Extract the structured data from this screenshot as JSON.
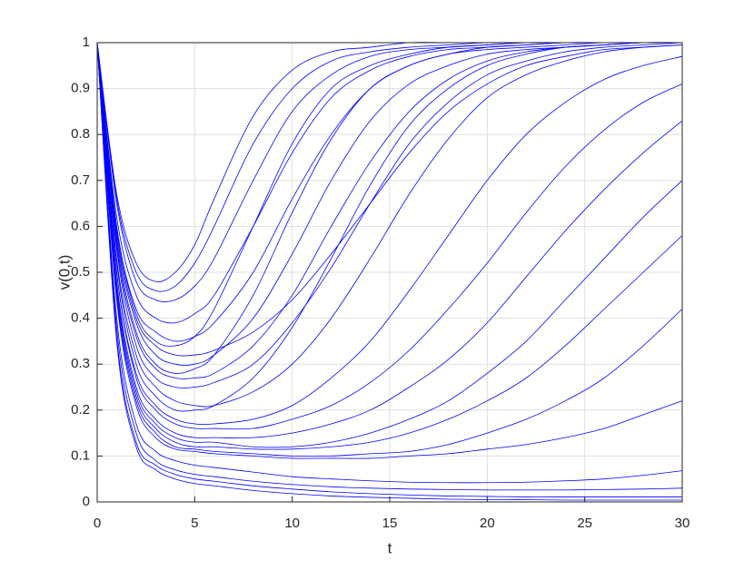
{
  "chart_data": {
    "type": "line",
    "xlabel": "t",
    "ylabel": "v(0,t)",
    "color": "#0000ff",
    "grid": true,
    "xlim": [
      0,
      30
    ],
    "ylim": [
      0,
      1
    ],
    "xticks": [
      0,
      5,
      10,
      15,
      20,
      25,
      30
    ],
    "yticks": [
      0,
      0.1,
      0.2,
      0.3,
      0.4,
      0.5,
      0.6,
      0.7,
      0.8,
      0.9,
      1
    ],
    "x": [
      0,
      1,
      2,
      3,
      4,
      5,
      6,
      8,
      10,
      12,
      14,
      16,
      18,
      20,
      22,
      24,
      26,
      28,
      30
    ],
    "series": [
      {
        "values": [
          1,
          0.66,
          0.5,
          0.46,
          0.47,
          0.52,
          0.6,
          0.78,
          0.9,
          0.96,
          0.98,
          0.99,
          0.995,
          1,
          1,
          1,
          1,
          1,
          1
        ]
      },
      {
        "values": [
          1,
          0.65,
          0.48,
          0.44,
          0.44,
          0.47,
          0.53,
          0.7,
          0.85,
          0.93,
          0.97,
          0.985,
          0.99,
          0.995,
          1,
          1,
          1,
          1,
          1
        ]
      },
      {
        "values": [
          1,
          0.62,
          0.45,
          0.4,
          0.39,
          0.41,
          0.45,
          0.6,
          0.76,
          0.88,
          0.94,
          0.97,
          0.985,
          0.99,
          0.995,
          1,
          1,
          1,
          1
        ]
      },
      {
        "values": [
          1,
          0.6,
          0.42,
          0.37,
          0.35,
          0.36,
          0.39,
          0.5,
          0.66,
          0.8,
          0.9,
          0.95,
          0.975,
          0.985,
          0.99,
          0.995,
          1,
          1,
          1
        ]
      },
      {
        "values": [
          1,
          0.6,
          0.41,
          0.35,
          0.34,
          0.36,
          0.42,
          0.6,
          0.78,
          0.9,
          0.95,
          0.975,
          0.99,
          0.995,
          1,
          1,
          1,
          1,
          1
        ]
      },
      {
        "values": [
          1,
          0.58,
          0.39,
          0.32,
          0.3,
          0.3,
          0.32,
          0.4,
          0.54,
          0.7,
          0.83,
          0.91,
          0.95,
          0.975,
          0.985,
          0.99,
          0.995,
          1,
          1
        ]
      },
      {
        "values": [
          1,
          0.57,
          0.37,
          0.3,
          0.28,
          0.29,
          0.32,
          0.45,
          0.63,
          0.79,
          0.9,
          0.95,
          0.975,
          0.99,
          0.995,
          1,
          1,
          1,
          1
        ]
      },
      {
        "values": [
          1,
          0.56,
          0.36,
          0.29,
          0.27,
          0.27,
          0.28,
          0.34,
          0.45,
          0.6,
          0.74,
          0.85,
          0.92,
          0.96,
          0.98,
          0.99,
          0.995,
          1,
          1
        ]
      },
      {
        "values": [
          1,
          0.55,
          0.34,
          0.27,
          0.25,
          0.25,
          0.26,
          0.3,
          0.39,
          0.51,
          0.65,
          0.78,
          0.87,
          0.93,
          0.96,
          0.98,
          0.99,
          0.995,
          1
        ]
      },
      {
        "values": [
          1,
          0.53,
          0.32,
          0.25,
          0.22,
          0.21,
          0.21,
          0.24,
          0.3,
          0.4,
          0.53,
          0.67,
          0.79,
          0.88,
          0.93,
          0.96,
          0.98,
          0.99,
          0.995
        ]
      },
      {
        "values": [
          1,
          0.52,
          0.3,
          0.23,
          0.2,
          0.2,
          0.21,
          0.27,
          0.38,
          0.53,
          0.69,
          0.82,
          0.9,
          0.95,
          0.975,
          0.99,
          0.995,
          1,
          1
        ]
      },
      {
        "values": [
          1,
          0.5,
          0.28,
          0.21,
          0.18,
          0.17,
          0.17,
          0.18,
          0.21,
          0.27,
          0.35,
          0.46,
          0.58,
          0.7,
          0.8,
          0.87,
          0.92,
          0.95,
          0.97
        ]
      },
      {
        "values": [
          1,
          0.5,
          0.27,
          0.2,
          0.17,
          0.16,
          0.16,
          0.16,
          0.18,
          0.21,
          0.26,
          0.33,
          0.42,
          0.52,
          0.63,
          0.73,
          0.81,
          0.87,
          0.91
        ]
      },
      {
        "values": [
          1,
          0.48,
          0.25,
          0.18,
          0.15,
          0.14,
          0.14,
          0.14,
          0.15,
          0.17,
          0.2,
          0.25,
          0.31,
          0.39,
          0.49,
          0.59,
          0.68,
          0.76,
          0.83
        ]
      },
      {
        "values": [
          1,
          0.47,
          0.24,
          0.17,
          0.14,
          0.13,
          0.13,
          0.12,
          0.12,
          0.13,
          0.15,
          0.18,
          0.22,
          0.28,
          0.35,
          0.44,
          0.53,
          0.62,
          0.7
        ]
      },
      {
        "values": [
          1,
          0.46,
          0.23,
          0.16,
          0.13,
          0.12,
          0.12,
          0.115,
          0.115,
          0.12,
          0.13,
          0.15,
          0.18,
          0.22,
          0.27,
          0.34,
          0.42,
          0.5,
          0.58
        ]
      },
      {
        "values": [
          1,
          0.45,
          0.22,
          0.15,
          0.12,
          0.115,
          0.11,
          0.105,
          0.1,
          0.1,
          0.105,
          0.11,
          0.125,
          0.15,
          0.18,
          0.22,
          0.27,
          0.34,
          0.42
        ]
      },
      {
        "values": [
          1,
          0.44,
          0.21,
          0.14,
          0.115,
          0.11,
          0.105,
          0.1,
          0.095,
          0.095,
          0.095,
          0.1,
          0.105,
          0.115,
          0.125,
          0.14,
          0.16,
          0.19,
          0.22
        ]
      },
      {
        "values": [
          1,
          0.4,
          0.17,
          0.11,
          0.09,
          0.08,
          0.075,
          0.065,
          0.055,
          0.05,
          0.046,
          0.043,
          0.042,
          0.042,
          0.043,
          0.046,
          0.05,
          0.058,
          0.068
        ]
      },
      {
        "values": [
          1,
          0.38,
          0.15,
          0.09,
          0.07,
          0.06,
          0.055,
          0.045,
          0.038,
          0.033,
          0.03,
          0.028,
          0.027,
          0.026,
          0.026,
          0.026,
          0.027,
          0.028,
          0.03
        ]
      },
      {
        "values": [
          1,
          0.36,
          0.13,
          0.08,
          0.06,
          0.05,
          0.045,
          0.035,
          0.028,
          0.022,
          0.018,
          0.015,
          0.013,
          0.012,
          0.011,
          0.011,
          0.011,
          0.011,
          0.011
        ]
      },
      {
        "values": [
          1,
          0.35,
          0.12,
          0.07,
          0.05,
          0.04,
          0.035,
          0.025,
          0.018,
          0.013,
          0.01,
          0.008,
          0.006,
          0.005,
          0.005,
          0.004,
          0.004,
          0.004,
          0.004
        ]
      },
      {
        "values": [
          1,
          0.67,
          0.52,
          0.48,
          0.5,
          0.56,
          0.66,
          0.84,
          0.94,
          0.98,
          0.99,
          1,
          1,
          1,
          1,
          1,
          1,
          1,
          1
        ]
      },
      {
        "values": [
          1,
          0.59,
          0.4,
          0.34,
          0.32,
          0.32,
          0.33,
          0.37,
          0.44,
          0.54,
          0.65,
          0.76,
          0.85,
          0.91,
          0.95,
          0.97,
          0.985,
          0.99,
          0.995
        ]
      }
    ]
  }
}
